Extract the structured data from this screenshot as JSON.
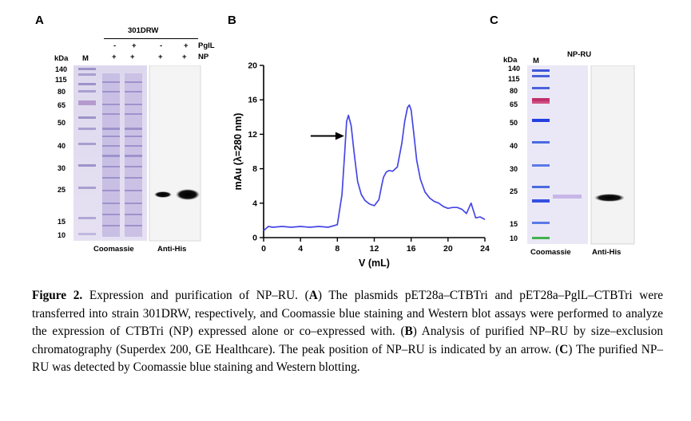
{
  "figure": {
    "panel_a": {
      "letter": "A",
      "strain_label": "301DRW",
      "kda_label": "kDa",
      "marker_label": "M",
      "row_labels": [
        "PglL",
        "NP"
      ],
      "pgll_signs": [
        "-",
        "+",
        "-",
        "+"
      ],
      "np_signs": [
        "+",
        "+",
        "+",
        "+"
      ],
      "mw_markers": [
        "140",
        "115",
        "80",
        "65",
        "50",
        "40",
        "30",
        "25",
        "15",
        "10"
      ],
      "gel_labels": [
        "Coomassie",
        "Anti-His"
      ]
    },
    "panel_b": {
      "letter": "B"
    },
    "panel_c": {
      "letter": "C",
      "title": "NP-RU",
      "kda_label": "kDa",
      "marker_label": "M",
      "mw_markers": [
        "140",
        "115",
        "80",
        "65",
        "50",
        "40",
        "30",
        "25",
        "15",
        "10"
      ],
      "gel_labels": [
        "Coomassie",
        "Anti-His"
      ]
    }
  },
  "chart_data": {
    "type": "line",
    "title": "",
    "xlabel": "V (mL)",
    "ylabel": "mAu (λ=280 nm)",
    "xlim": [
      0,
      24
    ],
    "ylim": [
      0,
      20
    ],
    "xticks": [
      0,
      4,
      8,
      12,
      16,
      20,
      24
    ],
    "yticks": [
      0,
      4,
      8,
      12,
      16,
      20
    ],
    "series": [
      {
        "name": "NP-RU",
        "color": "#4646e6",
        "x": [
          0,
          0.5,
          1,
          2,
          3,
          4,
          5,
          6,
          7,
          8,
          8.5,
          8.8,
          9.0,
          9.2,
          9.5,
          9.8,
          10.2,
          10.6,
          11.0,
          11.5,
          12.0,
          12.5,
          12.8,
          13.0,
          13.3,
          13.6,
          14.0,
          14.5,
          15.0,
          15.3,
          15.6,
          15.8,
          16.0,
          16.3,
          16.6,
          17.0,
          17.5,
          18.0,
          18.5,
          19.0,
          19.5,
          20.0,
          20.5,
          21.0,
          21.5,
          22.0,
          22.5,
          23.0,
          23.5,
          24.0
        ],
        "values": [
          0.8,
          1.3,
          1.2,
          1.3,
          1.2,
          1.3,
          1.2,
          1.3,
          1.2,
          1.5,
          5.0,
          10.0,
          13.5,
          14.2,
          13.0,
          10.0,
          6.5,
          5.0,
          4.3,
          3.9,
          3.7,
          4.4,
          6.0,
          7.0,
          7.6,
          7.8,
          7.7,
          8.2,
          11.0,
          13.5,
          15.1,
          15.4,
          14.8,
          12.0,
          9.0,
          6.8,
          5.3,
          4.6,
          4.2,
          4.0,
          3.6,
          3.4,
          3.5,
          3.5,
          3.3,
          2.8,
          4.0,
          2.3,
          2.4,
          2.1
        ]
      }
    ],
    "annotations": [
      {
        "type": "arrow",
        "target_x": 9.0,
        "target_y": 11.8
      }
    ]
  },
  "caption": {
    "label": "Figure 2.",
    "segments": [
      " Expression and purification of NP–RU. (",
      "A",
      ") The plasmids pET28a–CTBTri and pET28a–PglL–CTBTri were transferred into strain 301DRW, respectively, and Coomassie blue staining and Western blot assays were performed to analyze the expression of CTBTri (NP) expressed alone or co–expressed with. (",
      "B",
      ") Analysis of purified NP–RU by size–exclusion chromatography (Superdex 200, GE Healthcare). The peak position of NP–RU is indicated by an arrow. (",
      "C",
      ") The purified NP–RU was detected by Coomassie blue staining and Western blotting."
    ]
  }
}
